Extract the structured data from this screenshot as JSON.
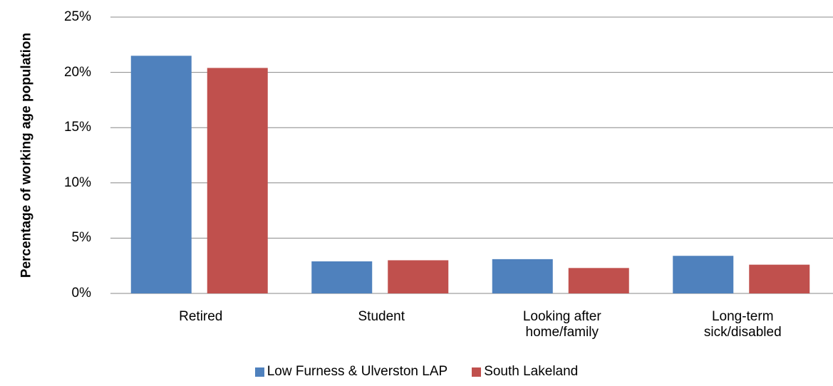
{
  "chart_data": {
    "type": "bar",
    "y_label": "Percentage of working age population",
    "categories": [
      "Retired",
      "Student",
      "Looking after home/family",
      "Long-term sick/disabled"
    ],
    "series": [
      {
        "name": "Low Furness & Ulverston LAP",
        "color": "#4f81bd",
        "values": [
          21.5,
          2.9,
          3.1,
          3.4
        ]
      },
      {
        "name": "South Lakeland",
        "color": "#c0504d",
        "values": [
          20.4,
          3.0,
          2.3,
          2.6
        ]
      }
    ],
    "ylim": [
      0,
      25
    ],
    "yticks": [
      {
        "value": 0,
        "label": "0%"
      },
      {
        "value": 5,
        "label": "5%"
      },
      {
        "value": 10,
        "label": "10%"
      },
      {
        "value": 15,
        "label": "15%"
      },
      {
        "value": 20,
        "label": "20%"
      },
      {
        "value": 25,
        "label": "25%"
      }
    ],
    "grid": true,
    "legend": "bottom"
  }
}
